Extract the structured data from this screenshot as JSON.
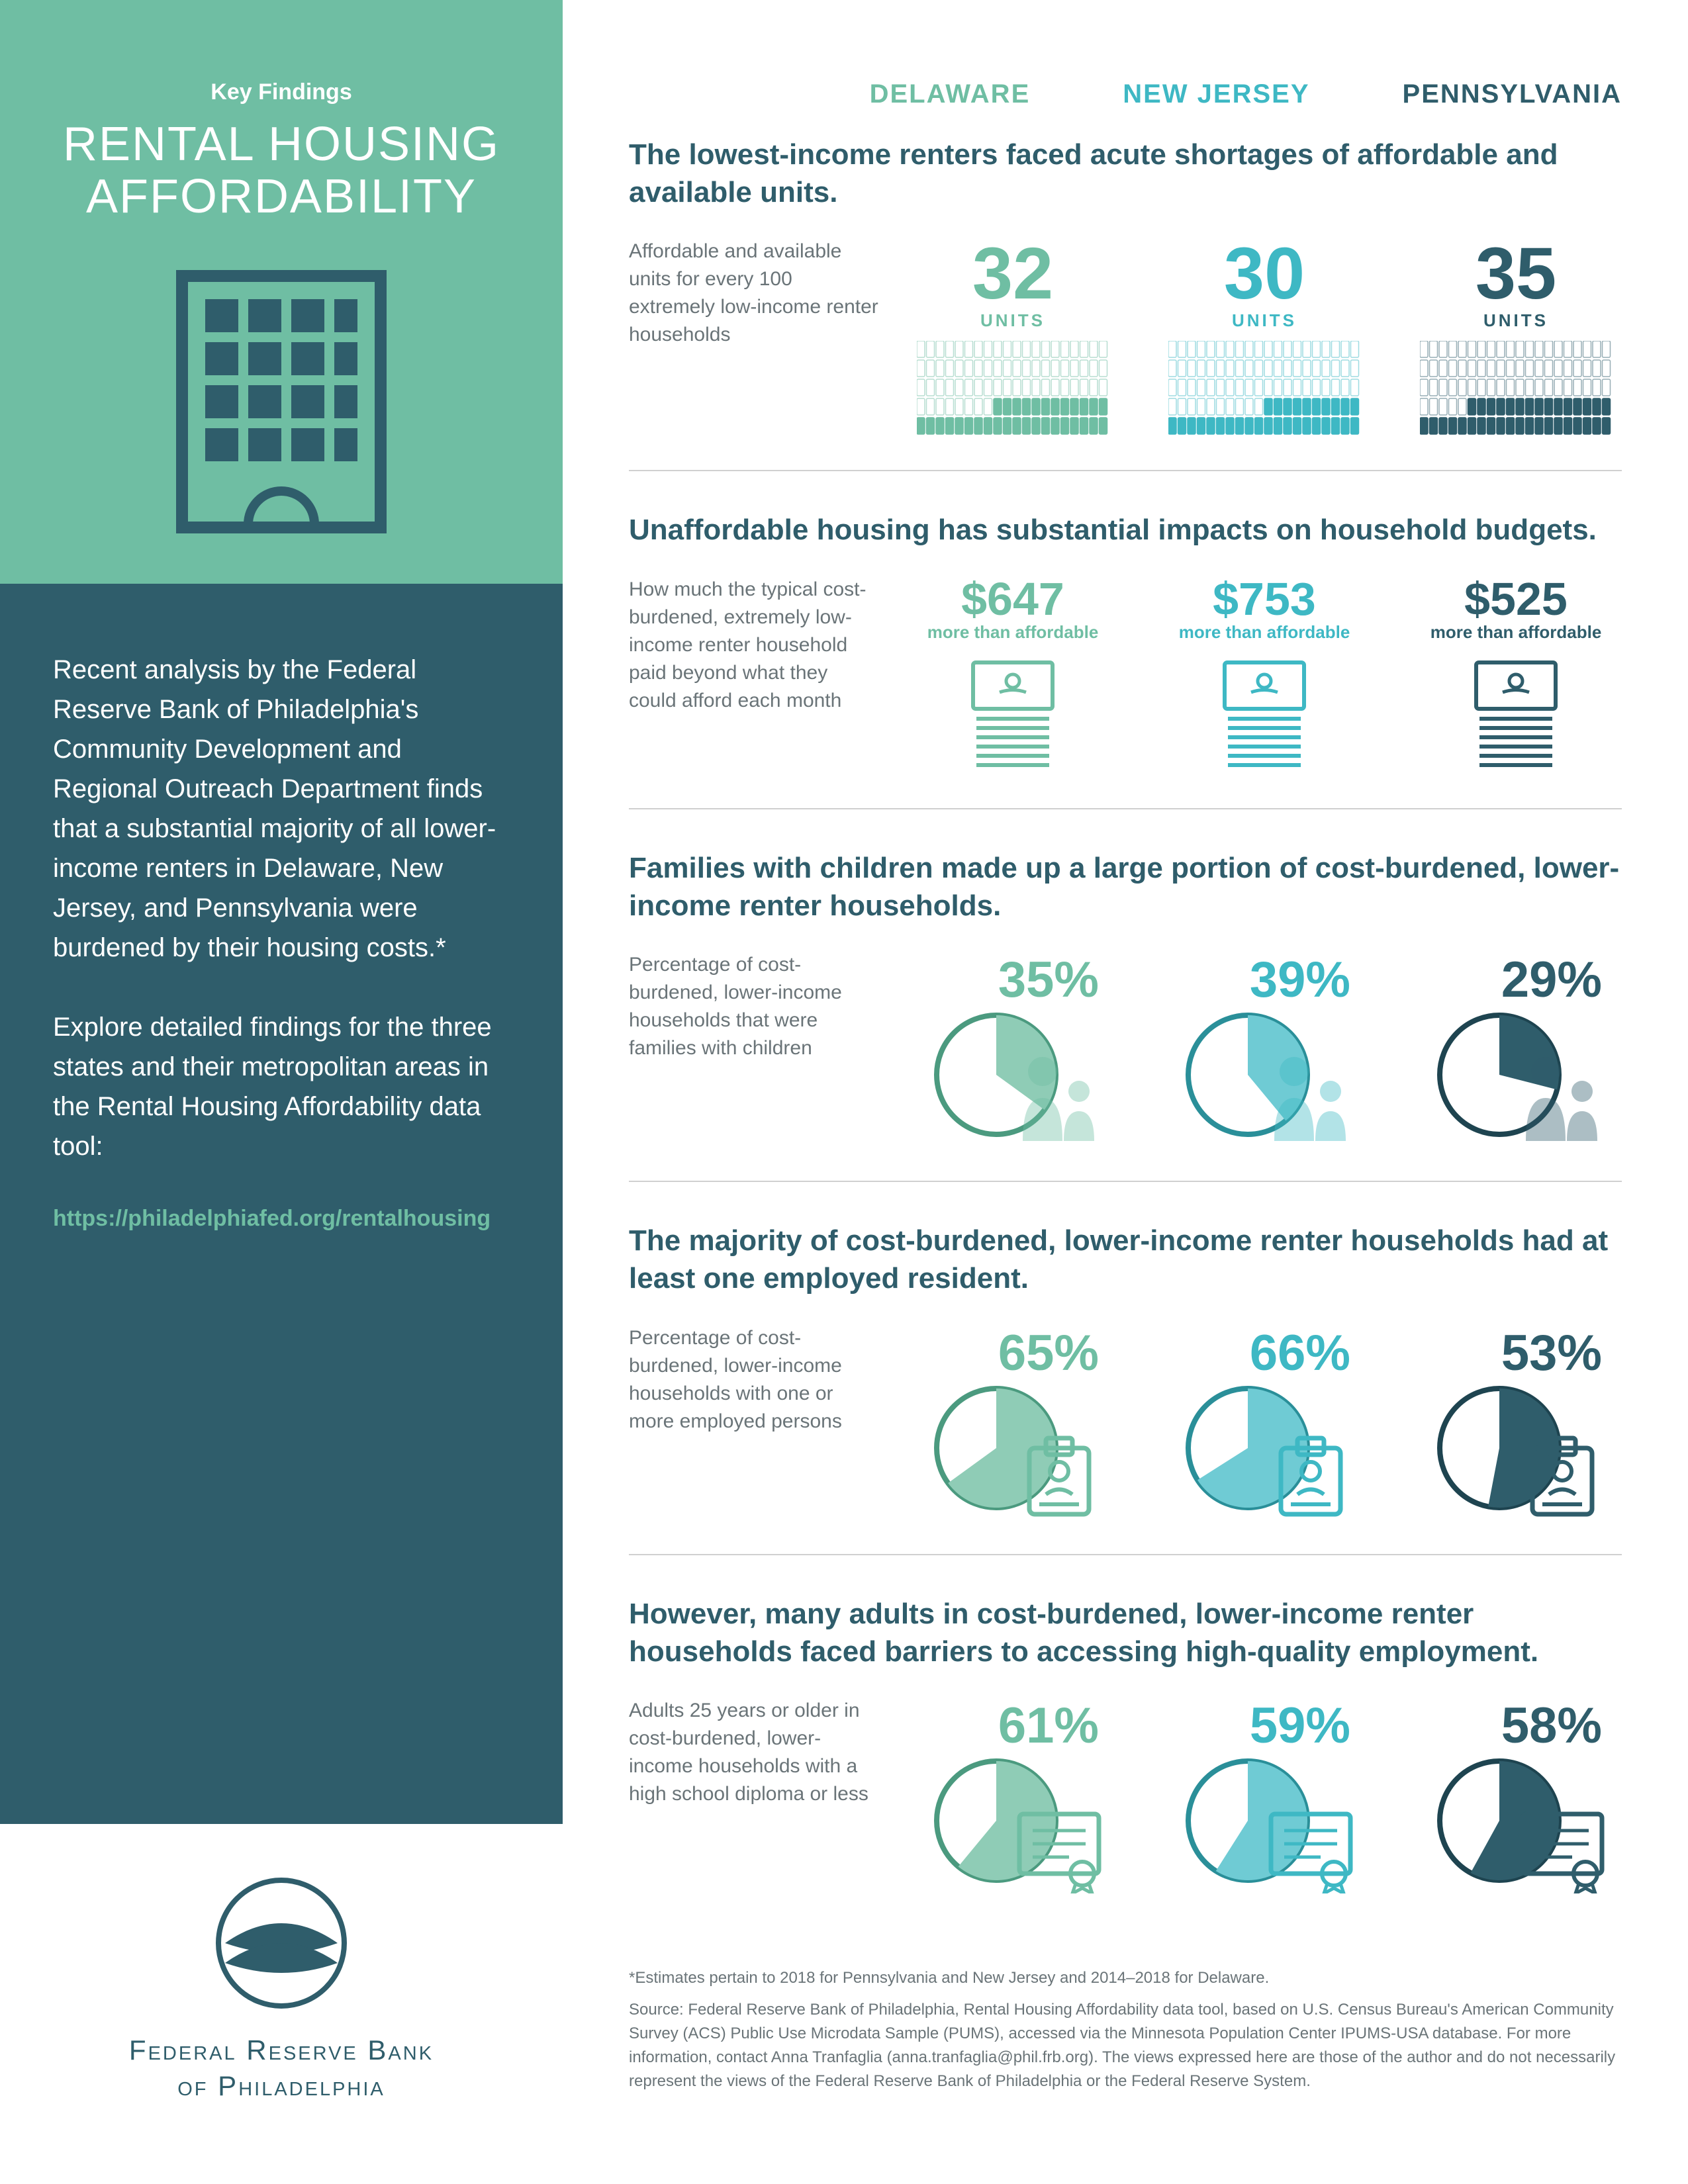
{
  "sidebar": {
    "eyebrow": "Key Findings",
    "title": "RENTAL HOUSING AFFORDABILITY",
    "para1": "Recent analysis by the Federal Reserve Bank of Philadelphia's Community Development and Regional Outreach Department finds that a substantial majority of all lower-income renters in Delaware, New Jersey, and Pennsylvania were burdened by their housing costs.*",
    "para2": "Explore detailed findings for the three states and their metropolitan areas in the Rental Housing Affordability data tool:",
    "link": "https://philadelphiafed.org/rentalhousing",
    "logo_line1": "Federal Reserve Bank",
    "logo_line2": "of Philadelphia"
  },
  "states": [
    {
      "name": "DELAWARE",
      "color": "#6fbea3",
      "fill": "#8fccb6",
      "accent": "#4b9a7f"
    },
    {
      "name": "NEW JERSEY",
      "color": "#3eb8c4",
      "fill": "#6fcbd4",
      "accent": "#2a8f99"
    },
    {
      "name": "PENNSYLVANIA",
      "color": "#2f5d6b",
      "fill": "#2f5d6b",
      "accent": "#1e4450"
    }
  ],
  "sections": [
    {
      "title": "The lowest-income renters faced acute shortages of affordable and available units.",
      "desc": "Affordable and available units for every 100 extremely low-income renter households",
      "type": "units",
      "values": [
        32,
        30,
        35
      ],
      "label": "UNITS"
    },
    {
      "title": "Unaffordable housing has substantial impacts on household budgets.",
      "desc": "How much the typical cost-burdened, extremely low-income renter household paid beyond what they could afford each month",
      "type": "cost",
      "values": [
        "$647",
        "$753",
        "$525"
      ],
      "sub": "more than affordable"
    },
    {
      "title": "Families with children made up a large portion of cost-burdened, lower-income renter households.",
      "desc": "Percentage of cost-burdened, lower-income households that were families with children",
      "type": "pie",
      "icon": "family",
      "values": [
        35,
        39,
        29
      ]
    },
    {
      "title": "The majority of cost-burdened, lower-income renter households had at least one employed resident.",
      "desc": "Percentage of cost-burdened, lower-income households with one or more employed persons",
      "type": "pie",
      "icon": "badge",
      "values": [
        65,
        66,
        53
      ]
    },
    {
      "title": "However, many adults in cost-burdened, lower-income renter households faced barriers to accessing high-quality employment.",
      "desc": "Adults 25 years or older in cost-burdened, lower-income households with a high school diploma or less",
      "type": "pie",
      "icon": "diploma",
      "values": [
        61,
        59,
        58
      ]
    }
  ],
  "footnotes": {
    "f1": "*Estimates pertain to 2018 for Pennsylvania and New Jersey and 2014–2018 for Delaware.",
    "f2": "Source: Federal Reserve Bank of Philadelphia, Rental Housing Affordability data tool, based on U.S. Census Bureau's American Community Survey (ACS) Public Use Microdata Sample (PUMS), accessed via the Minnesota Population Center IPUMS-USA database. For more information, contact Anna Tranfaglia (anna.tranfaglia@phil.frb.org). The views expressed here are those of the author and do not necessarily represent the views of the Federal Reserve Bank of Philadelphia or the Federal Reserve System."
  }
}
